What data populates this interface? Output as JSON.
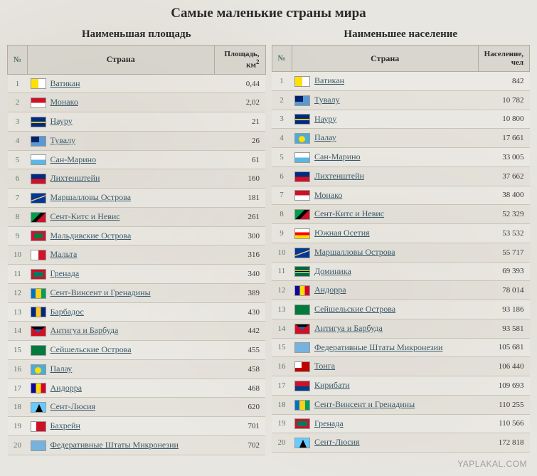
{
  "title": "Самые маленькие страны мира",
  "watermark": "YAPLAKAL.COM",
  "area_table": {
    "subtitle": "Наименьшая площадь",
    "headers": {
      "num": "№",
      "country": "Страна",
      "value_l1": "Площадь,",
      "value_l2": "км",
      "value_sup": "2"
    },
    "rows": [
      {
        "n": 1,
        "country": "Ватикан",
        "flag": "f-va",
        "value": "0,44"
      },
      {
        "n": 2,
        "country": "Монако",
        "flag": "f-mc",
        "value": "2,02"
      },
      {
        "n": 3,
        "country": "Науру",
        "flag": "f-nr",
        "value": "21"
      },
      {
        "n": 4,
        "country": "Тувалу",
        "flag": "f-tv",
        "value": "26"
      },
      {
        "n": 5,
        "country": "Сан-Марино",
        "flag": "f-sm",
        "value": "61"
      },
      {
        "n": 6,
        "country": "Лихтенштейн",
        "flag": "f-li",
        "value": "160"
      },
      {
        "n": 7,
        "country": "Маршалловы Острова",
        "flag": "f-mh",
        "value": "181"
      },
      {
        "n": 8,
        "country": "Сент-Китс и Невис",
        "flag": "f-kn",
        "value": "261"
      },
      {
        "n": 9,
        "country": "Мальдивские Острова",
        "flag": "f-mv",
        "value": "300"
      },
      {
        "n": 10,
        "country": "Мальта",
        "flag": "f-mt",
        "value": "316"
      },
      {
        "n": 11,
        "country": "Гренада",
        "flag": "f-gd",
        "value": "340"
      },
      {
        "n": 12,
        "country": "Сент-Винсент и Гренадины",
        "flag": "f-vc",
        "value": "389"
      },
      {
        "n": 13,
        "country": "Барбадос",
        "flag": "f-bb",
        "value": "430"
      },
      {
        "n": 14,
        "country": "Антигуа и Барбуда",
        "flag": "f-ag",
        "value": "442"
      },
      {
        "n": 15,
        "country": "Сейшельские Острова",
        "flag": "f-sc",
        "value": "455"
      },
      {
        "n": 16,
        "country": "Палау",
        "flag": "f-pw",
        "value": "458"
      },
      {
        "n": 17,
        "country": "Андорра",
        "flag": "f-ad",
        "value": "468"
      },
      {
        "n": 18,
        "country": "Сент-Люсия",
        "flag": "f-lc",
        "value": "620"
      },
      {
        "n": 19,
        "country": "Бахрейн",
        "flag": "f-bh",
        "value": "701"
      },
      {
        "n": 20,
        "country": "Федеративные Штаты Микронезии",
        "flag": "f-fm",
        "value": "702"
      }
    ]
  },
  "population_table": {
    "subtitle": "Наименьшее население",
    "headers": {
      "num": "№",
      "country": "Страна",
      "value_l1": "Население,",
      "value_l2": "чел"
    },
    "rows": [
      {
        "n": 1,
        "country": "Ватикан",
        "flag": "f-va",
        "value": "842"
      },
      {
        "n": 2,
        "country": "Тувалу",
        "flag": "f-tv",
        "value": "10 782"
      },
      {
        "n": 3,
        "country": "Науру",
        "flag": "f-nr",
        "value": "10 800"
      },
      {
        "n": 4,
        "country": "Палау",
        "flag": "f-pw",
        "value": "17 661"
      },
      {
        "n": 5,
        "country": "Сан-Марино",
        "flag": "f-sm",
        "value": "33 005"
      },
      {
        "n": 6,
        "country": "Лихтенштейн",
        "flag": "f-li",
        "value": "37 662"
      },
      {
        "n": 7,
        "country": "Монако",
        "flag": "f-mc",
        "value": "38 400"
      },
      {
        "n": 8,
        "country": "Сент-Китс и Невис",
        "flag": "f-kn",
        "value": "52 329"
      },
      {
        "n": 9,
        "country": "Южная Осетия",
        "flag": "f-so",
        "value": "53 532"
      },
      {
        "n": 10,
        "country": "Маршалловы Острова",
        "flag": "f-mh",
        "value": "55 717"
      },
      {
        "n": 11,
        "country": "Доминика",
        "flag": "f-dm",
        "value": "69 393"
      },
      {
        "n": 12,
        "country": "Андорра",
        "flag": "f-ad",
        "value": "78 014"
      },
      {
        "n": 13,
        "country": "Сейшельские Острова",
        "flag": "f-sc",
        "value": "93 186"
      },
      {
        "n": 14,
        "country": "Антигуа и Барбуда",
        "flag": "f-ag",
        "value": "93 581"
      },
      {
        "n": 15,
        "country": "Федеративные Штаты Микронезии",
        "flag": "f-fm",
        "value": "105 681"
      },
      {
        "n": 16,
        "country": "Тонга",
        "flag": "f-to",
        "value": "106 440"
      },
      {
        "n": 17,
        "country": "Кирибати",
        "flag": "f-ki",
        "value": "109 693"
      },
      {
        "n": 18,
        "country": "Сент-Винсент и Гренадины",
        "flag": "f-vc",
        "value": "110 255"
      },
      {
        "n": 19,
        "country": "Гренада",
        "flag": "f-gd",
        "value": "110 566"
      },
      {
        "n": 20,
        "country": "Сент-Люсия",
        "flag": "f-lc",
        "value": "172 818"
      }
    ]
  }
}
